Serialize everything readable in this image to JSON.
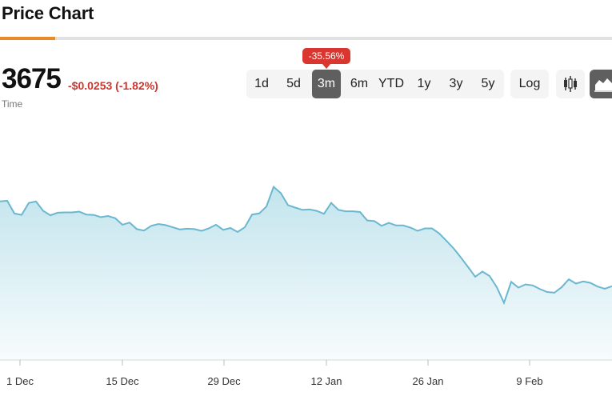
{
  "header": {
    "title": "Price Chart",
    "accent_color": "#e8892a"
  },
  "quote": {
    "price": "3675",
    "change": "-$0.0253 (-1.82%)",
    "change_color": "#d0342c",
    "time_label": "Time"
  },
  "ranges": {
    "items": [
      "1d",
      "5d",
      "3m",
      "6m",
      "YTD",
      "1y",
      "3y",
      "5y"
    ],
    "selected": "3m",
    "badge": "-35.56%"
  },
  "controls": {
    "log_label": "Log",
    "candlestick_icon": "candlestick-icon",
    "area_icon": "area-chart-icon",
    "selected_view": "area"
  },
  "chart_data": {
    "type": "area",
    "line_color": "#6ab7cf",
    "fill_color": "#bfe3ec",
    "x_tick_labels": [
      "1 Dec",
      "15 Dec",
      "29 Dec",
      "12 Jan",
      "26 Jan",
      "9 Feb"
    ],
    "grid": false,
    "series": [
      {
        "values": [
          5.36,
          5.38,
          5.03,
          4.99,
          5.32,
          5.36,
          5.1,
          4.98,
          5.05,
          5.06,
          5.06,
          5.08,
          5.0,
          4.99,
          4.93,
          4.96,
          4.9,
          4.72,
          4.78,
          4.6,
          4.56,
          4.69,
          4.74,
          4.71,
          4.65,
          4.59,
          4.61,
          4.6,
          4.55,
          4.62,
          4.72,
          4.58,
          4.63,
          4.52,
          4.65,
          5.0,
          5.03,
          5.22,
          5.76,
          5.59,
          5.26,
          5.19,
          5.13,
          5.14,
          5.1,
          5.02,
          5.32,
          5.13,
          5.09,
          5.09,
          5.07,
          4.84,
          4.82,
          4.69,
          4.77,
          4.7,
          4.7,
          4.64,
          4.55,
          4.62,
          4.62,
          4.48,
          4.28,
          4.07,
          3.82,
          3.56,
          3.29,
          3.43,
          3.31,
          3.0,
          2.57,
          3.15,
          2.99,
          3.08,
          3.05,
          2.95,
          2.87,
          2.85,
          3.0,
          3.22,
          3.1,
          3.16,
          3.12,
          3.02,
          2.96,
          3.03
        ]
      }
    ]
  }
}
